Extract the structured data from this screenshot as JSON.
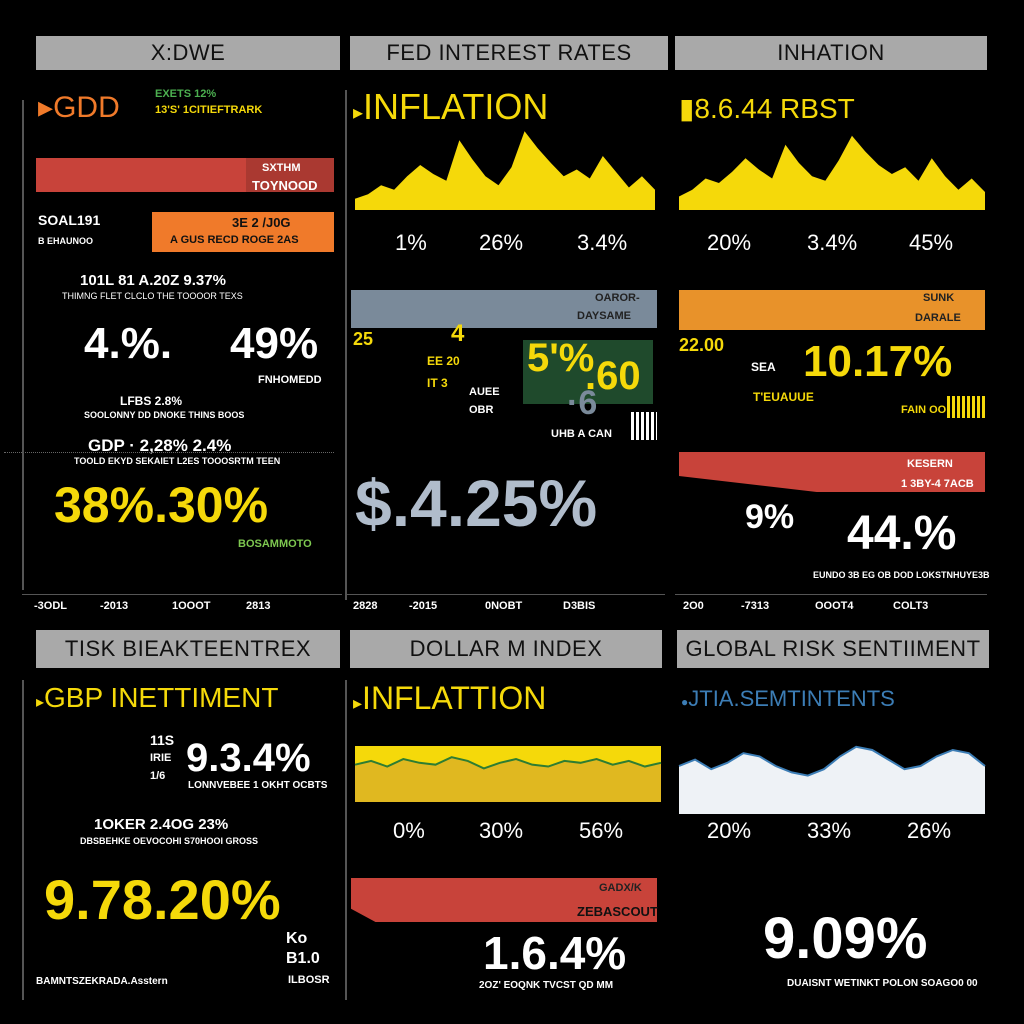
{
  "colors": {
    "yellow": "#f5d90a",
    "orange": "#f07a2a",
    "red": "#c8433a",
    "gray_header": "#a9a9a9",
    "blue_gray": "#7a8a9a",
    "steel_blue": "#3c7db5"
  },
  "p1": {
    "header": "X:DWE",
    "title": "GDD",
    "tag": "EXETS 12%",
    "tag2": "13'S' 1CITIEFTRARK",
    "bar1_label_a": "SXTHM",
    "bar1_label_b": "TOYNOOD",
    "left_label_a": "SOAL191",
    "left_label_b": "B EHAUNOO",
    "bar2_label_a": "3E 2 /J0G",
    "bar2_label_b": "A GUS RECD ROGE 2AS",
    "row_a": "101L 81 A.20Z 9.37%",
    "row_a_sub": "THIMNG FLET CLCLO THE TOOOOR TEXS",
    "val_a": "4.%.",
    "val_b": "49%",
    "val_b_sub": "FNHOMEDD",
    "mini_a": "LFBS 2.8%",
    "mini_b": "SOOLONNY DD DNOKE THINS BOOS",
    "gdp_row": "GDP · 2,28% 2.4%",
    "gdp_sub": "TOOLD EKYD SEKAIET L2ES TOOOSRTM TEEN",
    "main_value": "38%.30%",
    "main_sub": "BOSAMMOTO",
    "axis": [
      "-3ODL",
      "-2013",
      "1OOOT",
      "2813"
    ]
  },
  "p2": {
    "header": "FED INTEREST RATES",
    "title": "INFLATION",
    "ticks": [
      "1%",
      "26%",
      "3.4%"
    ],
    "bar_label_a": "OAROR-",
    "bar_label_b": "DAYSAME",
    "num_a": "25",
    "num_b": "4",
    "num_c": "5'%",
    "num_d": ".60",
    "num_e": "·6",
    "small_a": "EE 20",
    "small_b": "IT 3",
    "small_c": "AUEE",
    "small_d": "OBR",
    "small_e": "UHB A CAN",
    "main_value": "$.4.25%",
    "axis": [
      "2828",
      "-2015",
      "0NOBT",
      "D3BIS"
    ]
  },
  "p3": {
    "header": "INHATION",
    "title": "8.6.44 RBST",
    "ticks": [
      "20%",
      "3.4%",
      "45%"
    ],
    "bar_label_a": "SUNK",
    "bar_label_b": "DARALE",
    "num_left": "22.00",
    "num_big": "10.17%",
    "num_sub": "T'EUAUUE",
    "small_a": "SEA",
    "small_b": "FAIN OO",
    "red_label_a": "KESERN",
    "red_label_b": "1 3BY-4 7ACB",
    "val_a": "9%",
    "val_b": "44.%",
    "val_sub": "EUNDO 3B EG OB DOD LOKSTNHUYE3B",
    "axis": [
      "2O0",
      "-7313",
      "OOOT4",
      "COLT3"
    ]
  },
  "p4": {
    "header": "TISK BIEAKTEENTREX",
    "title": "GBP INETTIMENT",
    "tag_a": "11S",
    "tag_b": "IRIE",
    "tag_c": "1/6",
    "val_a": "9.3.4%",
    "val_a_sub": "LONNVEBEE 1 OKHT OCBTS",
    "row": "1OKER 2.4OG 23%",
    "row_sub": "DBSBEHKE OEVOCOHI S70HOOI GROSS",
    "main_value": "9.78.20%",
    "side_a": "Ko",
    "side_b": "B1.0",
    "side_c": "ILBOSR",
    "footer": "BAMNTSZEKRADA.Asstern"
  },
  "p5": {
    "header": "DOLLAR M INDEX",
    "title": "INFLATTION",
    "ticks": [
      "0%",
      "30%",
      "56%"
    ],
    "bar_label_a": "GADX/K",
    "bar_label_b": "ZEBASCOUT",
    "main_value": "1.6.4%",
    "footer": "2OZ' EOQNK TVCST QD MM"
  },
  "p6": {
    "header": "GLOBAL RISK SENTIIMENT",
    "title": "JTIA.SEMTINTENTS",
    "ticks": [
      "20%",
      "33%",
      "26%"
    ],
    "main_value": "9.09%",
    "footer": "DUAISNT WETINKT POLON SOAGO0 00"
  },
  "chart_data": [
    {
      "type": "area",
      "title": "INFLATION",
      "x": [
        1,
        2,
        3,
        4,
        5,
        6,
        7,
        8,
        9,
        10,
        11,
        12,
        13,
        14,
        15,
        16,
        17,
        18,
        19,
        20,
        21,
        22,
        23,
        24
      ],
      "values": [
        10,
        14,
        22,
        18,
        30,
        40,
        32,
        26,
        62,
        45,
        30,
        22,
        38,
        70,
        55,
        42,
        30,
        36,
        28,
        48,
        34,
        20,
        30,
        18
      ],
      "ylim": [
        0,
        80
      ],
      "tick_labels": [
        "1%",
        "26%",
        "3.4%"
      ]
    },
    {
      "type": "area",
      "title": "8.6.44 RBST",
      "x": [
        1,
        2,
        3,
        4,
        5,
        6,
        7,
        8,
        9,
        10,
        11,
        12,
        13,
        14,
        15,
        16,
        17,
        18,
        19,
        20,
        21,
        22,
        23,
        24
      ],
      "values": [
        12,
        18,
        28,
        24,
        34,
        46,
        36,
        28,
        58,
        42,
        30,
        26,
        44,
        66,
        52,
        40,
        32,
        38,
        26,
        46,
        30,
        18,
        28,
        16
      ],
      "ylim": [
        0,
        80
      ],
      "tick_labels": [
        "20%",
        "3.4%",
        "45%"
      ]
    },
    {
      "type": "area",
      "title": "INFLATTION",
      "x": [
        1,
        2,
        3,
        4,
        5,
        6,
        7,
        8,
        9,
        10,
        11,
        12,
        13,
        14,
        15,
        16,
        17,
        18,
        19,
        20
      ],
      "values": [
        40,
        44,
        38,
        46,
        42,
        40,
        48,
        44,
        36,
        42,
        46,
        40,
        38,
        44,
        42,
        46,
        40,
        44,
        38,
        42
      ],
      "ylim": [
        0,
        60
      ],
      "tick_labels": [
        "0%",
        "30%",
        "56%"
      ]
    },
    {
      "type": "line",
      "title": "JTIA.SEMTINTENTS",
      "x": [
        1,
        2,
        3,
        4,
        5,
        6,
        7,
        8,
        9,
        10,
        11,
        12,
        13,
        14,
        15,
        16,
        17,
        18,
        19,
        20
      ],
      "values": [
        30,
        34,
        28,
        32,
        38,
        36,
        30,
        26,
        24,
        28,
        36,
        42,
        40,
        34,
        28,
        30,
        36,
        40,
        38,
        30
      ],
      "ylim": [
        0,
        50
      ],
      "tick_labels": [
        "20%",
        "33%",
        "26%"
      ]
    }
  ]
}
